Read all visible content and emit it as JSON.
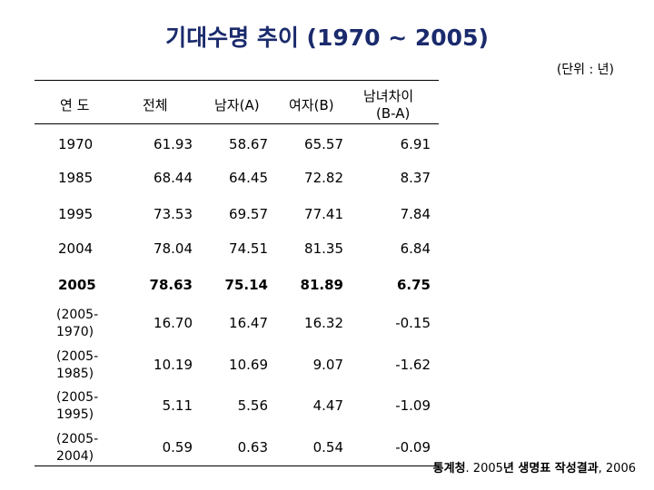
{
  "title": "기대수명 추이 (1970 ~ 2005)",
  "unit": "(단위 : 년)",
  "headers": {
    "year": "연 도",
    "total": "전체",
    "male": "남자(A)",
    "female": "여자(B)",
    "diff_line1": "남녀차이",
    "diff_line2": "(B-A)"
  },
  "rows": [
    {
      "year": "1970",
      "total": "61.93",
      "male": "58.67",
      "female": "65.57",
      "diff": "6.91"
    },
    {
      "year": "1985",
      "total": "68.44",
      "male": "64.45",
      "female": "72.82",
      "diff": "8.37"
    },
    {
      "year": "1995",
      "total": "73.53",
      "male": "69.57",
      "female": "77.41",
      "diff": "7.84"
    },
    {
      "year": "2004",
      "total": "78.04",
      "male": "74.51",
      "female": "81.35",
      "diff": "6.84"
    },
    {
      "year": "2005",
      "total": "78.63",
      "male": "75.14",
      "female": "81.89",
      "diff": "6.75"
    }
  ],
  "change_rows": [
    {
      "period_line1": "(2005-",
      "period_line2": "1970)",
      "total": "16.70",
      "male": "16.47",
      "female": "16.32",
      "diff": "-0.15"
    },
    {
      "period_line1": "(2005-",
      "period_line2": "1985)",
      "total": "10.19",
      "male": "10.69",
      "female": "9.07",
      "diff": "-1.62"
    },
    {
      "period_line1": "(2005-",
      "period_line2": "1995)",
      "total": "5.11",
      "male": "5.56",
      "female": "4.47",
      "diff": "-1.09"
    },
    {
      "period_line1": "(2005-",
      "period_line2": "2004)",
      "total": "0.59",
      "male": "0.63",
      "female": "0.54",
      "diff": "-0.09"
    }
  ],
  "source": {
    "org": "통계청",
    "sep": ". 2005",
    "year_suffix": "년 생명표 작성결과",
    "tail": ", 2006"
  }
}
